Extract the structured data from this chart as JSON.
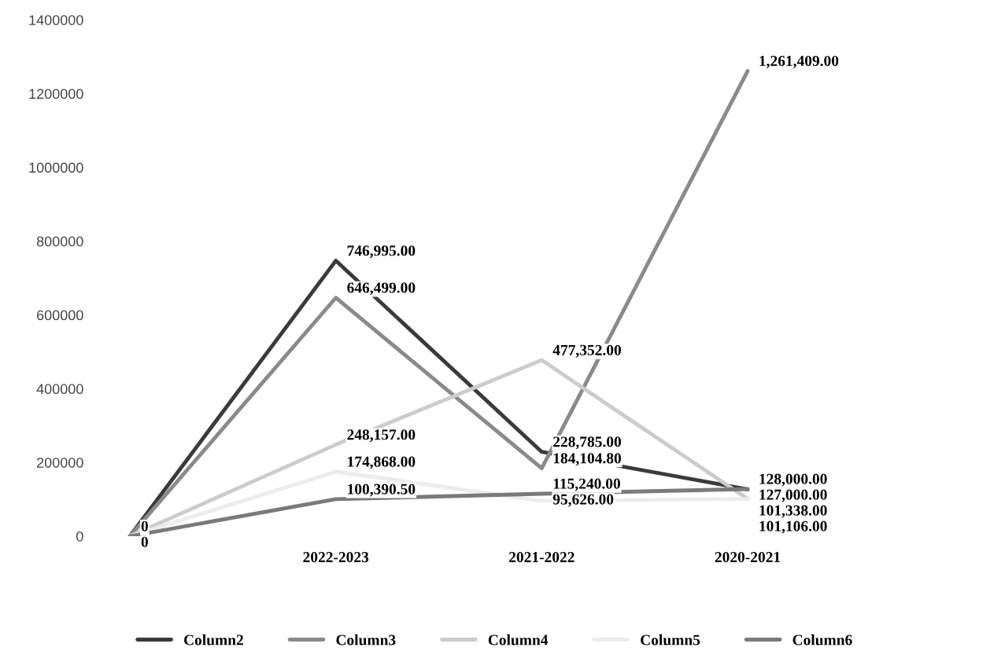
{
  "chart_data": {
    "type": "line",
    "categories": [
      null,
      "2022-2023",
      "2021-2022",
      "2020-2021"
    ],
    "series": [
      {
        "name": "Column2",
        "color": "#3a3a3a",
        "values": [
          0,
          746995,
          228785,
          127000
        ],
        "value_labels": [
          "0",
          "746,995.00",
          "228,785.00",
          "127,000.00"
        ]
      },
      {
        "name": "Column3",
        "color": "#8a8a8a",
        "values": [
          0,
          646499,
          184104.8,
          1261409
        ],
        "value_labels": [
          "0",
          "646,499.00",
          "184,104.80",
          "1,261,409.00"
        ]
      },
      {
        "name": "Column4",
        "color": "#cccccc",
        "values": [
          0,
          248157,
          477352,
          101338
        ],
        "value_labels": [
          null,
          "248,157.00",
          "477,352.00",
          "101,338.00"
        ]
      },
      {
        "name": "Column5",
        "color": "#ececec",
        "values": [
          0,
          174868,
          95626,
          101106
        ],
        "value_labels": [
          null,
          "174,868.00",
          "95,626.00",
          "101,106.00"
        ]
      },
      {
        "name": "Column6",
        "color": "#7a7a7a",
        "values": [
          0,
          100390.5,
          115240,
          128000
        ],
        "value_labels": [
          null,
          "100,390.50",
          "115,240.00",
          "128,000.00"
        ]
      }
    ],
    "ylim": [
      0,
      1400000
    ],
    "yticks": [
      0,
      200000,
      400000,
      600000,
      800000,
      1000000,
      1200000,
      1400000
    ],
    "grid": false,
    "legend": "bottom"
  }
}
